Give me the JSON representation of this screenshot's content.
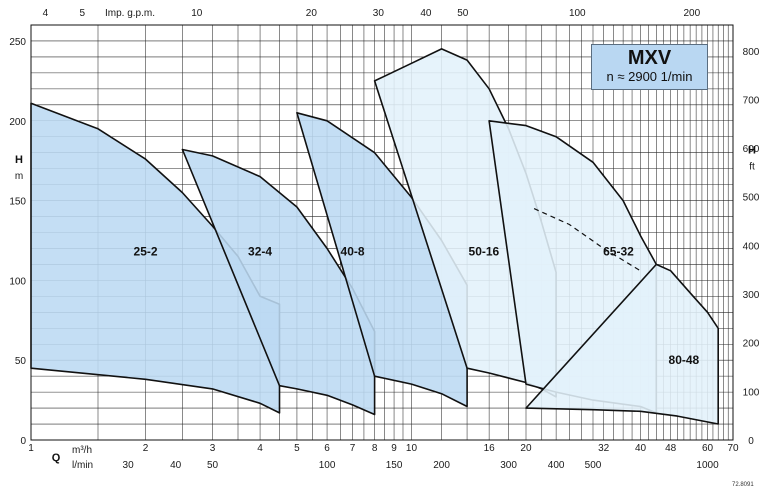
{
  "chart_data": {
    "type": "area",
    "title": "MXV",
    "subtitle": "n ≈ 2900 1/min",
    "y_left": {
      "label": "H",
      "unit": "m",
      "range": [
        0,
        260
      ],
      "ticks": [
        0,
        50,
        100,
        150,
        200,
        250
      ]
    },
    "y_right": {
      "label": "H",
      "unit": "ft",
      "ticks": [
        100,
        200,
        300,
        400,
        500,
        600,
        700,
        800
      ]
    },
    "x_top": {
      "label": "Imp. g.p.m.",
      "ticks": [
        4,
        5,
        10,
        20,
        30,
        40,
        50,
        100,
        200
      ]
    },
    "x_m3h": {
      "label": "Q",
      "unit": "m³/h",
      "scale": "log",
      "range": [
        1,
        70
      ],
      "ticks": [
        1,
        2,
        3,
        4,
        5,
        6,
        7,
        8,
        9,
        10,
        16,
        20,
        32,
        40,
        48,
        60,
        70
      ]
    },
    "x_lmin": {
      "unit": "l/min",
      "ticks": [
        30,
        40,
        50,
        100,
        150,
        200,
        300,
        400,
        500,
        1000
      ]
    },
    "series": [
      {
        "name": "25-2",
        "upper_q": [
          1,
          1.5,
          2,
          2.5,
          3,
          3.5,
          4,
          4.5
        ],
        "upper_h": [
          211,
          195,
          176,
          155,
          134,
          115,
          90,
          85
        ],
        "lower_q": [
          1,
          2,
          3,
          4,
          4.5
        ],
        "lower_h": [
          45,
          38,
          32,
          23,
          17
        ]
      },
      {
        "name": "32-4",
        "upper_q": [
          2.5,
          3,
          4,
          5,
          6,
          7,
          8
        ],
        "upper_h": [
          182,
          178,
          165,
          146,
          120,
          95,
          68
        ],
        "lower_q": [
          4.5,
          5,
          6,
          7,
          8
        ],
        "lower_h": [
          34,
          32,
          28,
          22,
          16
        ]
      },
      {
        "name": "40-8",
        "upper_q": [
          5,
          6,
          8,
          10,
          12,
          14
        ],
        "upper_h": [
          205,
          200,
          180,
          152,
          125,
          97
        ],
        "lower_q": [
          8,
          10,
          12,
          14
        ],
        "lower_h": [
          40,
          35,
          29,
          21
        ]
      },
      {
        "name": "50-16",
        "upper_q": [
          8,
          10,
          12,
          14,
          16,
          18,
          20,
          22,
          24
        ],
        "upper_h": [
          225,
          236,
          245,
          238,
          220,
          195,
          167,
          136,
          105
        ],
        "lower_q": [
          14,
          16,
          20,
          22,
          24
        ],
        "lower_h": [
          45,
          42,
          36,
          32,
          27
        ]
      },
      {
        "name": "65-32",
        "upper_q": [
          16,
          20,
          24,
          30,
          36,
          40,
          44
        ],
        "upper_h": [
          200,
          197,
          190,
          174,
          150,
          128,
          110
        ],
        "lower_q": [
          20,
          24,
          30,
          40,
          44
        ],
        "lower_h": [
          35,
          30,
          25,
          21,
          17
        ]
      },
      {
        "name": "80-48",
        "upper_q": [
          44,
          48,
          55,
          60,
          64
        ],
        "upper_h": [
          110,
          106,
          90,
          80,
          70
        ],
        "lower_q": [
          20,
          30,
          40,
          50,
          64
        ],
        "lower_h": [
          20,
          19,
          18,
          15,
          10
        ]
      }
    ]
  },
  "footnote": "72.8091"
}
